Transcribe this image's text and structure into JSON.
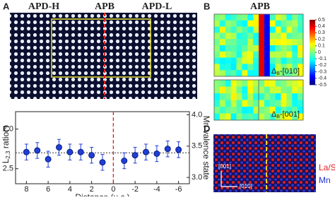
{
  "panel_a": {
    "label": "A",
    "headings": [
      "APD-H",
      "APB",
      "APD-L"
    ]
  },
  "panel_b": {
    "label": "B",
    "title": "APB",
    "map_labels": [
      [
        "Δ",
        "B",
        "-[010]"
      ],
      [
        "Δ",
        "B",
        "-[001]"
      ]
    ],
    "colorbar_ticks": [
      0.5,
      0.4,
      0.3,
      0.2,
      0.1,
      0,
      -0.1,
      -0.2,
      -0.3,
      -0.4,
      -0.5
    ]
  },
  "panel_c": {
    "label": "C"
  },
  "panel_d": {
    "label": "D",
    "axis_labels": [
      "[001]",
      "[010]"
    ],
    "species": [
      "La/Sr",
      "Mn"
    ]
  },
  "chart_data": {
    "type": "scatter",
    "x_label": "Distance (u.c.)",
    "y_label": [
      "L",
      "2,3",
      " ratio"
    ],
    "y2_label": "Mn valence state",
    "x": [
      8,
      7,
      6,
      5,
      4,
      3,
      2,
      1,
      -1,
      -2,
      -3,
      -4,
      -5,
      -6
    ],
    "series": [
      {
        "color": "#1f3fd6",
        "values": [
          2.29,
          2.27,
          2.38,
          2.23,
          2.29,
          2.29,
          2.33,
          2.42,
          2.4,
          2.33,
          2.29,
          2.31,
          2.25,
          2.26
        ],
        "errors": [
          0.1,
          0.1,
          0.1,
          0.1,
          0.1,
          0.1,
          0.1,
          0.1,
          0.1,
          0.1,
          0.1,
          0.1,
          0.1,
          0.1
        ]
      }
    ],
    "reference_y": 2.3,
    "xlim": [
      9,
      -7
    ],
    "xticks": [
      8,
      6,
      4,
      2,
      0,
      -2,
      -4,
      -6
    ],
    "ylim": [
      2.69,
      1.78
    ],
    "yticks": [
      {
        "value": 2,
        "label": "2.0"
      },
      2.5
    ],
    "y2lim": [
      2.9,
      4.05
    ],
    "y2ticks": [
      {
        "value": 3,
        "label": "3.0"
      },
      3.5,
      {
        "value": 4,
        "label": "4.0"
      }
    ]
  }
}
